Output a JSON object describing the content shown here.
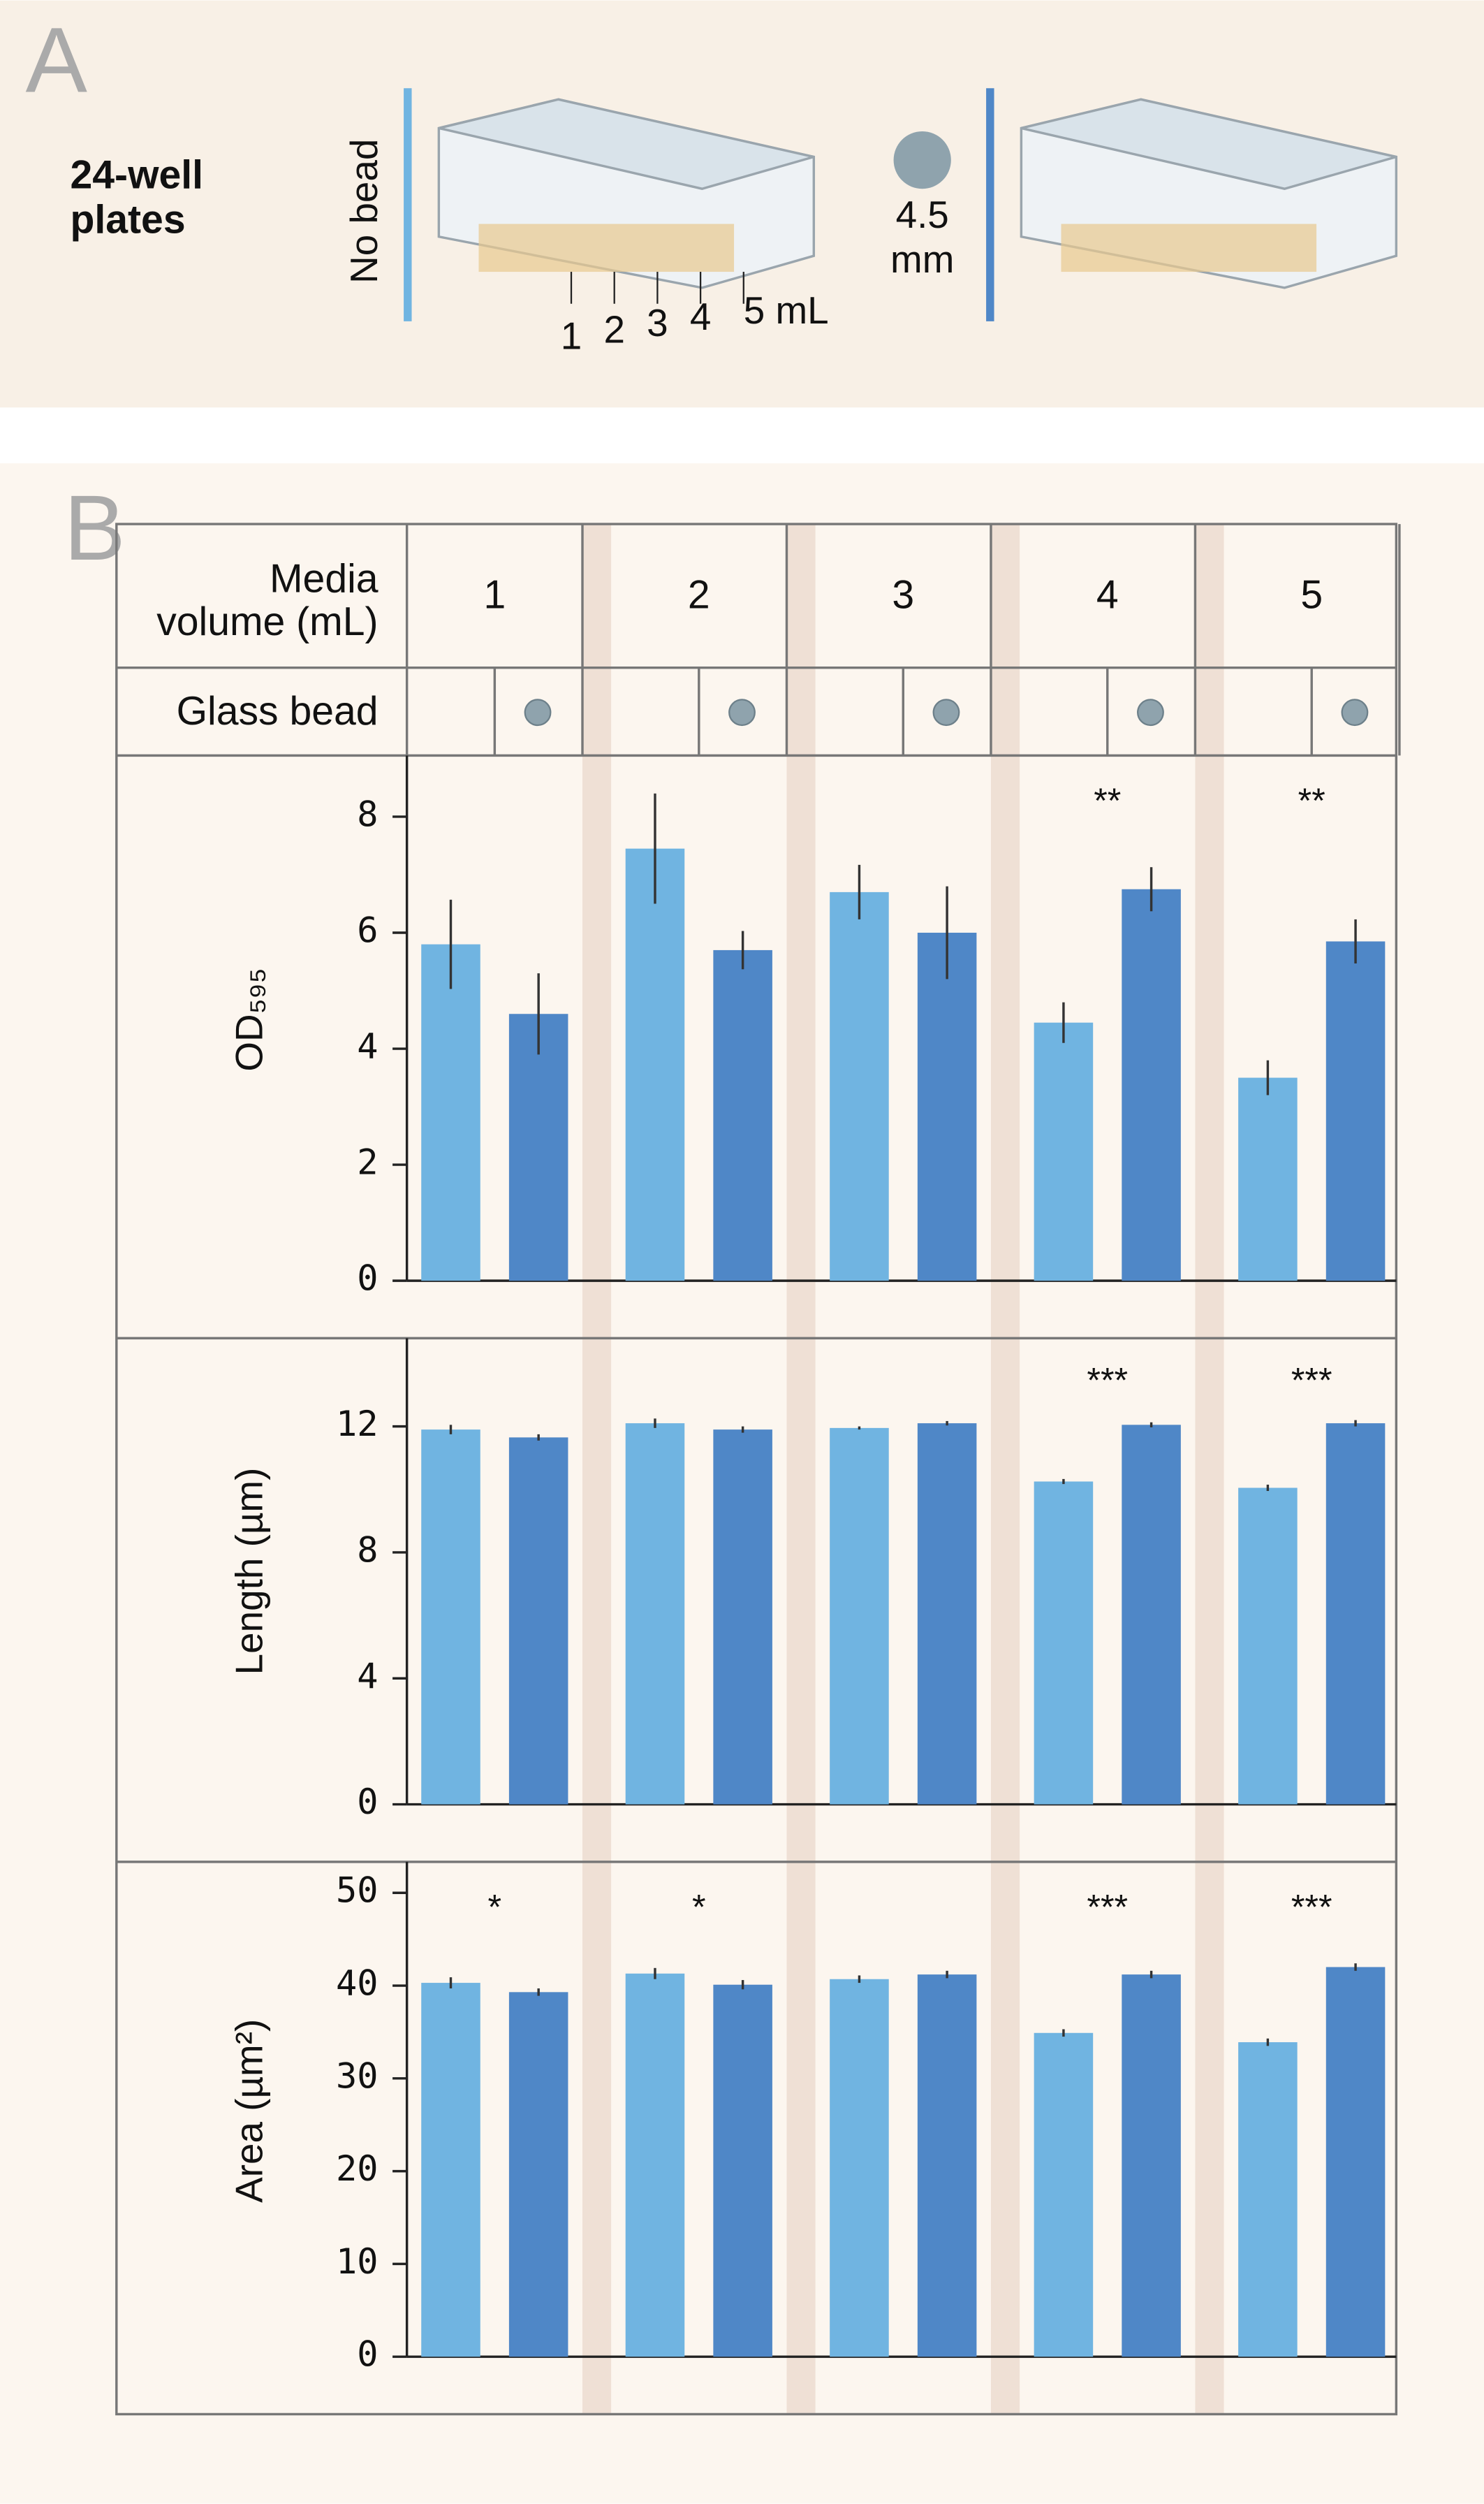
{
  "panel_a": {
    "letter": "A",
    "title": [
      "24-well",
      "plates"
    ],
    "no_bead": "No bead",
    "bead_size": [
      "4.5",
      "mm"
    ],
    "volumes": [
      "1",
      "2",
      "3",
      "4",
      "5 mL"
    ]
  },
  "panel_b": {
    "letter": "B",
    "volume_label": [
      "Media",
      "volume (mL)"
    ],
    "bead_label": "Glass bead",
    "categories": [
      "1",
      "2",
      "3",
      "4",
      "5"
    ]
  },
  "chart_data": [
    {
      "type": "bar",
      "y_label": "OD₅₉₅",
      "ylim": [
        0,
        9
      ],
      "yticks": [
        0,
        2,
        4,
        6,
        8
      ],
      "series": [
        {
          "color": "#70b4e1",
          "values": [
            5.8,
            7.45,
            6.7,
            4.45,
            3.5
          ],
          "errors": [
            0.77,
            0.95,
            0.47,
            0.35,
            0.3
          ]
        },
        {
          "color": "#4f87c7",
          "values": [
            4.6,
            5.7,
            6.0,
            6.75,
            5.85
          ],
          "errors": [
            0.7,
            0.33,
            0.8,
            0.38,
            0.38
          ]
        }
      ],
      "annotations": [
        null,
        null,
        null,
        "**",
        "**"
      ]
    },
    {
      "type": "bar",
      "y_label": "Length (µm)",
      "ylim": [
        0,
        14.8
      ],
      "yticks": [
        0,
        4,
        8,
        12
      ],
      "series": [
        {
          "color": "#70b4e1",
          "values": [
            11.9,
            12.1,
            11.95,
            10.25,
            10.05
          ],
          "errors": [
            0.15,
            0.15,
            0.05,
            0.08,
            0.1
          ]
        },
        {
          "color": "#4f87c7",
          "values": [
            11.65,
            11.9,
            12.1,
            12.05,
            12.1
          ],
          "errors": [
            0.1,
            0.1,
            0.07,
            0.08,
            0.1
          ]
        }
      ],
      "annotations": [
        null,
        null,
        null,
        "***",
        "***"
      ]
    },
    {
      "type": "bar",
      "y_label": "Area (µm²)",
      "ylim": [
        0,
        53
      ],
      "yticks": [
        0,
        10,
        20,
        30,
        40,
        50
      ],
      "series": [
        {
          "color": "#70b4e1",
          "values": [
            40.3,
            41.3,
            40.7,
            34.9,
            33.9
          ],
          "errors": [
            0.6,
            0.6,
            0.4,
            0.4,
            0.4
          ]
        },
        {
          "color": "#4f87c7",
          "values": [
            39.3,
            40.1,
            41.2,
            41.2,
            42.0
          ],
          "errors": [
            0.4,
            0.5,
            0.4,
            0.4,
            0.4
          ]
        }
      ],
      "annotations": [
        "*",
        "*",
        null,
        "***",
        "***"
      ]
    }
  ]
}
